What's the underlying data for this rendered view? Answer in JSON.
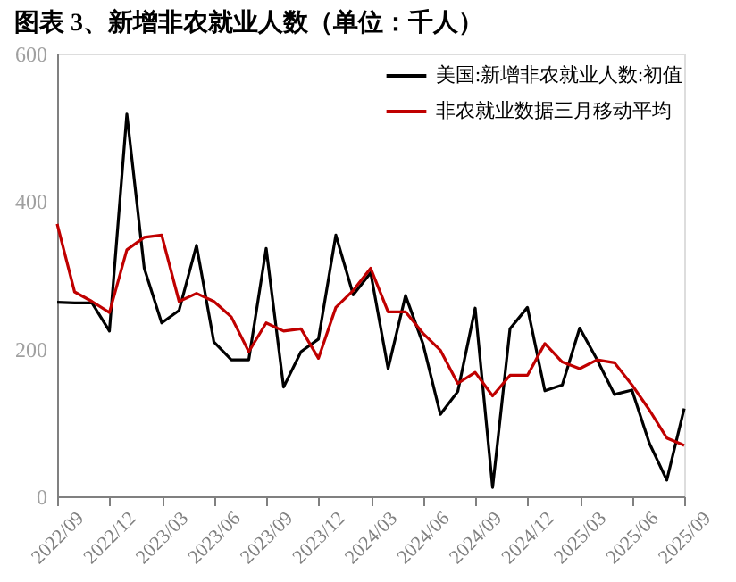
{
  "chart_data": {
    "type": "line",
    "title": "图表 3、新增非农就业人数（单位：千人）",
    "categories": [
      "2022/09",
      null,
      null,
      "2022/12",
      null,
      null,
      "2023/03",
      null,
      null,
      "2023/06",
      null,
      null,
      "2023/09",
      null,
      null,
      "2023/12",
      null,
      null,
      "2024/03",
      null,
      null,
      "2024/06",
      null,
      null,
      "2024/09",
      null,
      null,
      "2024/12",
      null,
      null,
      "2025/03",
      null,
      null,
      "2025/06",
      null,
      null,
      "2025/09"
    ],
    "series": [
      {
        "name": "美国:新增非农就业人数:初值",
        "color": "#000000",
        "values": [
          263,
          262,
          262,
          224,
          518,
          309,
          235,
          252,
          340,
          209,
          185,
          185,
          336,
          148,
          196,
          213,
          354,
          273,
          303,
          173,
          272,
          207,
          111,
          142,
          255,
          12,
          227,
          256,
          143,
          151,
          228,
          185,
          138,
          144,
          72,
          22,
          119
        ]
      },
      {
        "name": "非农就业数据三月移动平均",
        "color": "#c00000",
        "values": [
          369,
          277,
          264,
          249,
          334,
          351,
          354,
          264,
          275,
          264,
          243,
          196,
          235,
          224,
          227,
          187,
          256,
          279,
          309,
          250,
          250,
          221,
          198,
          153,
          168,
          136,
          164,
          164,
          207,
          182,
          173,
          185,
          181,
          151,
          117,
          79,
          69
        ]
      }
    ],
    "ylim": [
      0,
      600
    ],
    "yticks": [
      0,
      200,
      400,
      600
    ],
    "grid": false,
    "legend": "top right",
    "line_style": "solid",
    "marker": "none"
  }
}
